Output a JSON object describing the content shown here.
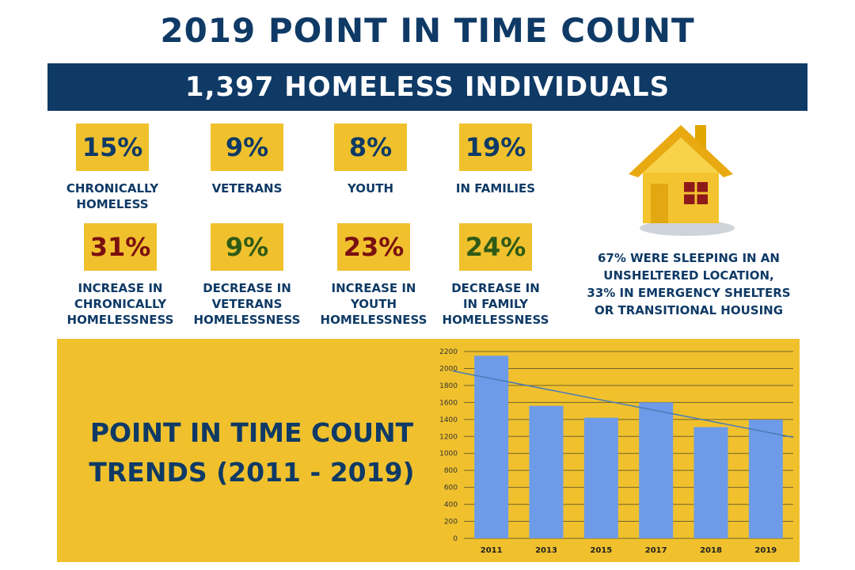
{
  "title": "2019 POINT IN TIME COUNT",
  "banner": "1,397 HOMELESS INDIVIDUALS",
  "stats_top": [
    {
      "value": "15%",
      "label": "CHRONICALLY\nHOMELESS"
    },
    {
      "value": "9%",
      "label": "VETERANS"
    },
    {
      "value": "8%",
      "label": "YOUTH"
    },
    {
      "value": "19%",
      "label": "IN FAMILIES"
    }
  ],
  "stats_bottom": [
    {
      "value": "31%",
      "label": "INCREASE IN\nCHRONICALLY\nHOMELESSNESS",
      "color": "#7a1010"
    },
    {
      "value": "9%",
      "label": "DECREASE IN\nVETERANS\nHOMELESSNESS",
      "color": "#2f5a16"
    },
    {
      "value": "23%",
      "label": "INCREASE IN\nYOUTH\nHOMELESSNESS",
      "color": "#7a1010"
    },
    {
      "value": "24%",
      "label": "DECREASE IN\nIN FAMILY\nHOMELESSNESS",
      "color": "#2f5a16"
    }
  ],
  "sleeping_note": "67% WERE SLEEPING IN AN\nUNSHELTERED LOCATION,\n33% IN EMERGENCY SHELTERS\nOR TRANSITIONAL HOUSING",
  "trend_title": "POINT IN TIME COUNT\nTRENDS (2011 - 2019)",
  "colors": {
    "navy": "#0f3a66",
    "gold": "#f0c12d",
    "bar": "#6e9be8",
    "trend": "#4a7bb7"
  },
  "chart_data": {
    "type": "bar",
    "categories": [
      "2011",
      "2013",
      "2015",
      "2017",
      "2018",
      "2019"
    ],
    "values": [
      2150,
      1560,
      1420,
      1600,
      1310,
      1397
    ],
    "trendline": {
      "start": 1970,
      "end": 1190
    },
    "ylim": [
      0,
      2200
    ],
    "yticks": [
      0,
      200,
      400,
      600,
      800,
      1000,
      1200,
      1400,
      1600,
      1800,
      2000,
      2200
    ],
    "grid": true,
    "xlabel": "",
    "ylabel": ""
  }
}
